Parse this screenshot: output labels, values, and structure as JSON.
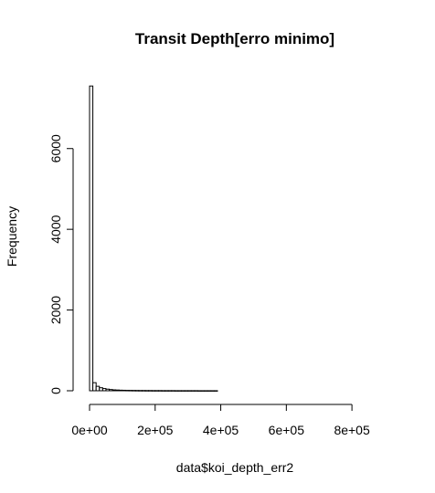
{
  "chart_data": {
    "type": "bar",
    "title": "Transit Depth[erro minimo]",
    "xlabel": "data$koi_depth_err2",
    "ylabel": "Frequency",
    "xlim": [
      0,
      900000
    ],
    "ylim": [
      0,
      7600
    ],
    "x_ticks": [
      0,
      200000,
      400000,
      600000,
      800000
    ],
    "x_tick_labels": [
      "0e+00",
      "2e+05",
      "4e+05",
      "6e+05",
      "8e+05"
    ],
    "y_ticks": [
      0,
      2000,
      4000,
      6000
    ],
    "y_tick_labels": [
      "0",
      "2000",
      "4000",
      "6000"
    ],
    "bin_width": 10000,
    "bin_start": 0,
    "values": [
      7550,
      200,
      110,
      75,
      55,
      40,
      30,
      22,
      18,
      14,
      12,
      10,
      9,
      8,
      7,
      6,
      6,
      5,
      5,
      4,
      4,
      4,
      3,
      3,
      3,
      3,
      2,
      2,
      2,
      2,
      2,
      2,
      2,
      1,
      1,
      1,
      1,
      1,
      1
    ],
    "grid": false
  }
}
